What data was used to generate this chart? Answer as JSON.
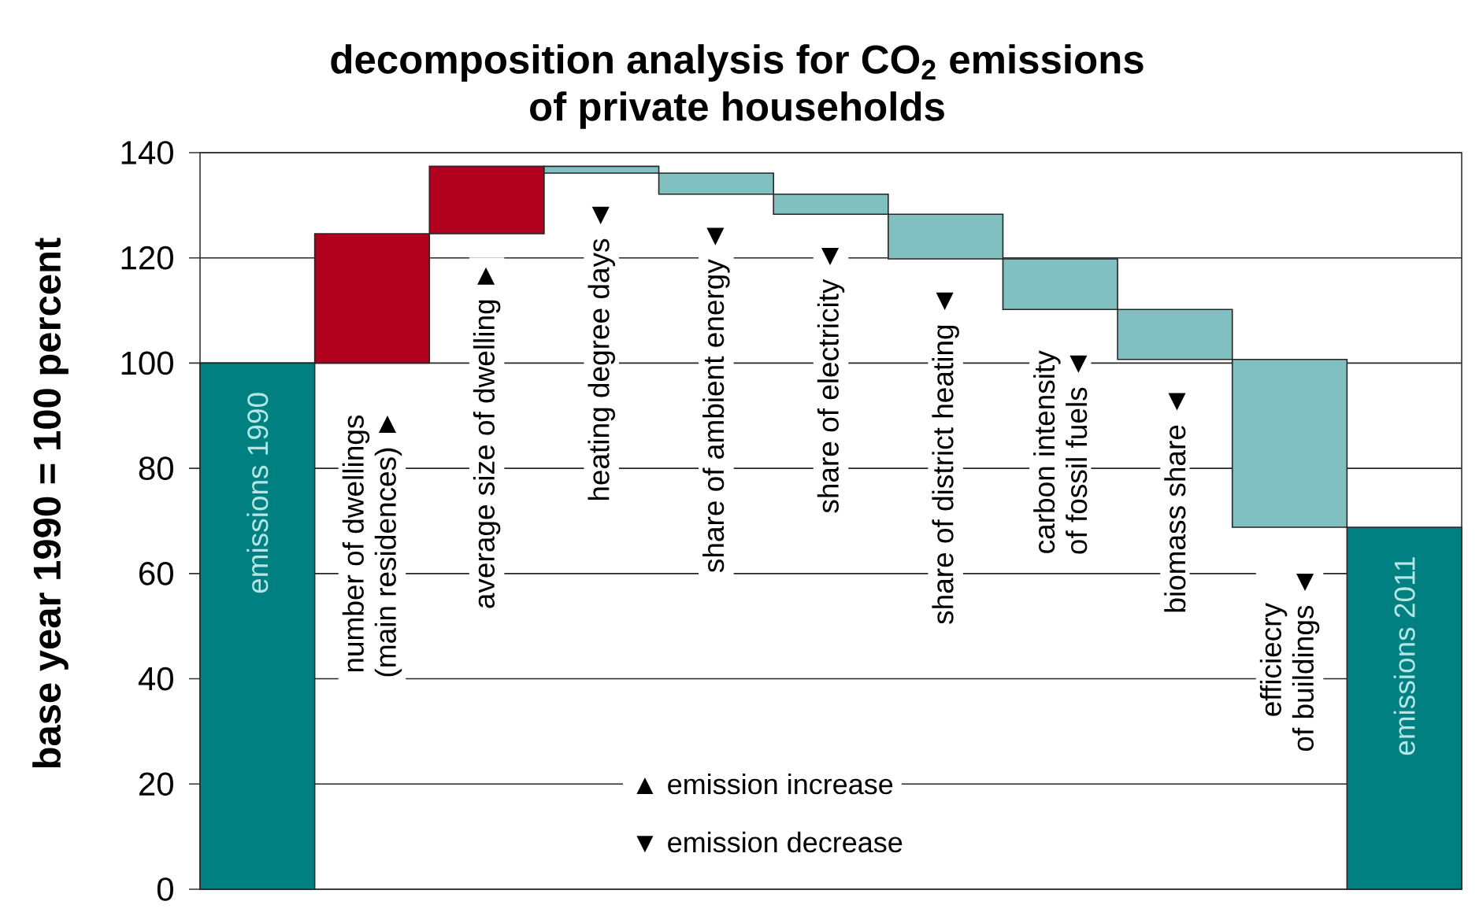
{
  "chart_data": {
    "type": "bar",
    "title": "decomposition analysis for CO$_{2}$ emissions of private households",
    "ylabel": "base year 1990 = 100 percent",
    "categories": [
      "emissions 1990",
      "number of dwellings (main residences) ►",
      "average size of dwelling ►",
      "heating degree days ◄",
      "share of ambient energy ◄",
      "share of electricity ◄",
      "share of district heating ◄",
      "carbon intensity of fossil fuels ◄",
      "biomass share ◄",
      "efficiecry of buildings ◄",
      "emissions 2011"
    ],
    "values": [
      100,
      24.6,
      12.8,
      -1.3,
      -4.0,
      -3.8,
      -8.5,
      -9.6,
      -9.5,
      -31.9,
      68.8
    ],
    "base": [
      0,
      100,
      124.6,
      137.4,
      136.1,
      132.1,
      128.3,
      119.8,
      110.2,
      100.7,
      0
    ],
    "colors": [
      "#008080",
      "#b0001e",
      "#b0001e",
      "#80c0c0",
      "#80c0c0",
      "#80c0c0",
      "#80c0c0",
      "#80c0c0",
      "#80c0c0",
      "#80c0c0",
      "#008080"
    ],
    "ylim": [
      0,
      140
    ],
    "yticks": [
      0,
      20,
      40,
      60,
      80,
      100,
      120,
      140
    ],
    "grid": "y",
    "annotations": [
      "▲ emission increase",
      "▼ emission decrease"
    ]
  }
}
